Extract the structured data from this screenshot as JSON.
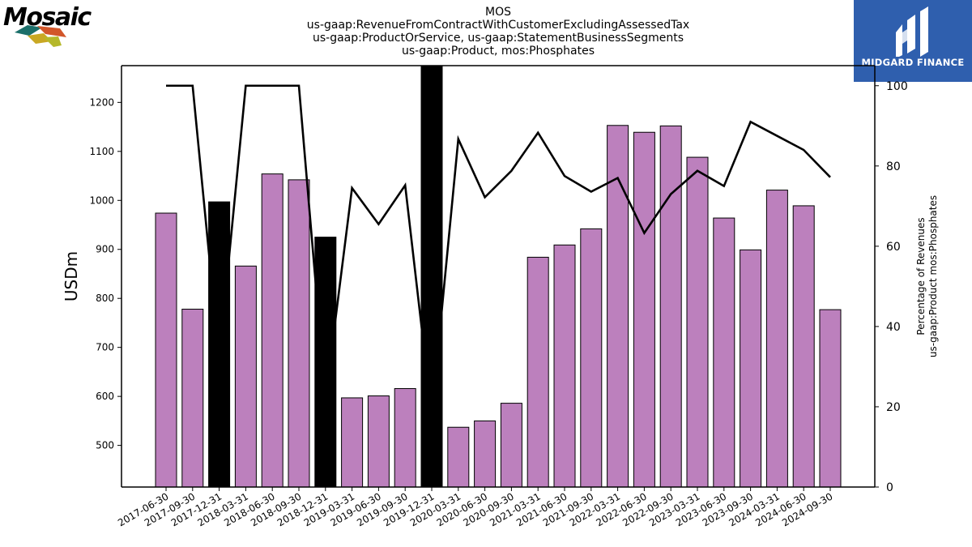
{
  "header": {
    "title_lines": [
      "MOS",
      "us-gaap:RevenueFromContractWithCustomerExcludingAssessedTax",
      "us-gaap:ProductOrService, us-gaap:StatementBusinessSegments",
      "us-gaap:Product, mos:Phosphates"
    ]
  },
  "logos": {
    "left_text": "Mosaic",
    "right_text": "MIDGARD FINANCE",
    "left_icon": "mosaic-tiles-logo",
    "right_icon": "midgard-finance-logo"
  },
  "colors": {
    "bar_default": "#bc80bd",
    "bar_highlight": "#000000",
    "line": "#000000",
    "brand_right": "#2f5fae"
  },
  "chart_data": {
    "type": "bar",
    "categories": [
      "2017-06-30",
      "2017-09-30",
      "2017-12-31",
      "2018-03-31",
      "2018-06-30",
      "2018-09-30",
      "2018-12-31",
      "2019-03-31",
      "2019-06-30",
      "2019-09-30",
      "2019-12-31",
      "2020-03-31",
      "2020-06-30",
      "2020-09-30",
      "2021-03-31",
      "2021-06-30",
      "2021-09-30",
      "2022-03-31",
      "2022-06-30",
      "2022-09-30",
      "2023-03-31",
      "2023-06-30",
      "2023-09-30",
      "2024-03-31",
      "2024-06-30",
      "2024-09-30"
    ],
    "series": [
      {
        "values": [
          974,
          778,
          997,
          866,
          1054,
          1042,
          925,
          597,
          601,
          616,
          1275,
          537,
          550,
          586,
          884,
          909,
          942,
          1153,
          1139,
          1152,
          1088,
          964,
          899,
          1021,
          989,
          777
        ],
        "highlight": [
          false,
          false,
          true,
          false,
          false,
          false,
          true,
          false,
          false,
          false,
          true,
          false,
          false,
          false,
          false,
          false,
          false,
          false,
          false,
          false,
          false,
          false,
          false,
          false,
          false,
          false
        ],
        "axis": "left"
      },
      {
        "type": "line",
        "values": [
          100,
          100,
          32,
          100,
          100,
          100,
          22,
          74.5,
          65.5,
          75.2,
          18,
          86.7,
          72.2,
          78.8,
          88.3,
          77.5,
          73.6,
          77,
          63.3,
          73,
          78.8,
          75,
          91,
          87.5,
          84,
          77.2
        ],
        "axis": "right"
      }
    ],
    "ylabel": "USDm",
    "ylabel_right_lines": [
      "Percentage of Revenues",
      "us-gaap:Product mos:Phosphates"
    ],
    "ylim": [
      415,
      1275
    ],
    "yticks": [
      500,
      600,
      700,
      800,
      900,
      1000,
      1100,
      1200
    ],
    "ylim_right": [
      0,
      105
    ],
    "yticks_right": [
      0,
      20,
      40,
      60,
      80,
      100
    ],
    "grid": false,
    "legend": "none"
  }
}
